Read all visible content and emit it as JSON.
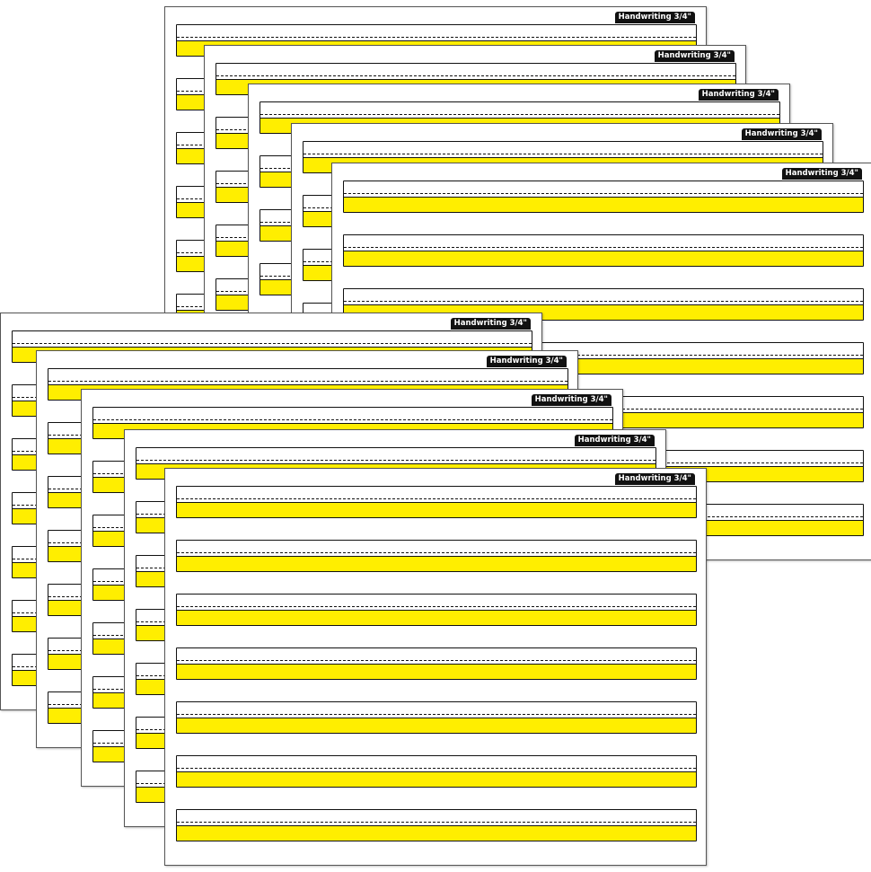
{
  "sheet_label": "Handwriting 3/4\"",
  "rows_per_sheet": 7,
  "group_count": 2,
  "sheets_per_group": 5,
  "colors": {
    "highlight": "#ffee00",
    "line": "#111111",
    "tab": "#111111"
  }
}
